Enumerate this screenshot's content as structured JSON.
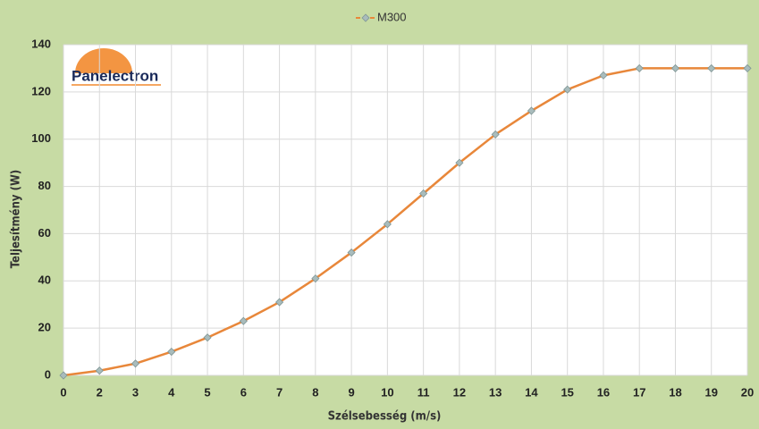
{
  "logo": "Panelectron",
  "chart_data": {
    "type": "line",
    "x_label": "Szélsebesség (m/s)",
    "y_label": "Teljesítmény (W)",
    "categories": [
      "0",
      "2",
      "3",
      "4",
      "5",
      "6",
      "7",
      "8",
      "9",
      "10",
      "11",
      "12",
      "13",
      "14",
      "15",
      "16",
      "17",
      "18",
      "19",
      "20"
    ],
    "series": [
      {
        "name": "M300",
        "color": "#e8873a",
        "marker_color": "#a9bcbc",
        "values": [
          0,
          2,
          5,
          10,
          16,
          23,
          31,
          41,
          52,
          64,
          77,
          90,
          102,
          112,
          121,
          127,
          130,
          130,
          130,
          130
        ]
      }
    ],
    "ylim": [
      0,
      140
    ],
    "yticks": [
      0,
      20,
      40,
      60,
      80,
      100,
      120,
      140
    ],
    "grid": true,
    "legend": "top"
  }
}
